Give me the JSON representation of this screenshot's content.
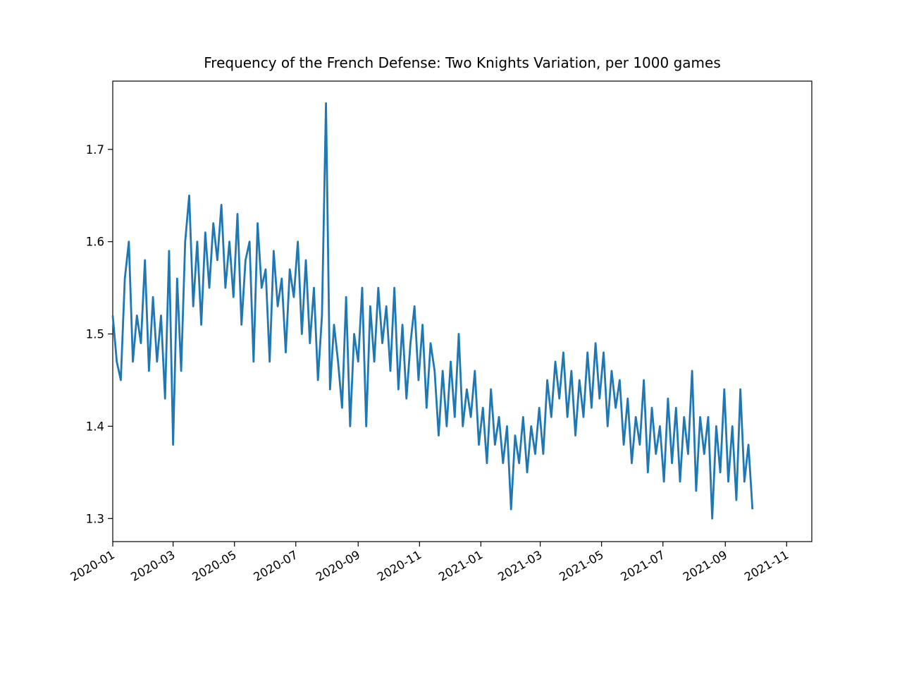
{
  "chart_data": {
    "type": "line",
    "title": "Frequency of the French Defense: Two Knights Variation, per 1000 games",
    "x": [
      0,
      4,
      8,
      12,
      16,
      20,
      24,
      28,
      32,
      36,
      40,
      44,
      48,
      52,
      56,
      60,
      64,
      68,
      72,
      76,
      80,
      84,
      88,
      92,
      96,
      100,
      104,
      108,
      112,
      116,
      120,
      124,
      128,
      132,
      136,
      140,
      144,
      148,
      152,
      156,
      160,
      164,
      168,
      172,
      176,
      180,
      184,
      188,
      192,
      196,
      200,
      204,
      208,
      212,
      216,
      220,
      224,
      228,
      232,
      236,
      240,
      244,
      248,
      252,
      256,
      260,
      264,
      268,
      272,
      276,
      280,
      284,
      288,
      292,
      296,
      300,
      304,
      308,
      312,
      316,
      320,
      324,
      328,
      332,
      336,
      340,
      344,
      348,
      352,
      356,
      360,
      364,
      368,
      372,
      376,
      380,
      384,
      388,
      392,
      396,
      400,
      404,
      408,
      412,
      416,
      420,
      424,
      428,
      432,
      436,
      440,
      444,
      448,
      452,
      456,
      460,
      464,
      468,
      472,
      476,
      480,
      484,
      488,
      492,
      496,
      500,
      504,
      508,
      512,
      516,
      520,
      524,
      528,
      532,
      536,
      540,
      544,
      548,
      552,
      556,
      560,
      564,
      568,
      572,
      576,
      580,
      584,
      588,
      592,
      596,
      600,
      604,
      608,
      612,
      616,
      620,
      624,
      628,
      632,
      636
    ],
    "series": [
      {
        "color": "#1f77b4",
        "values": [
          1.52,
          1.47,
          1.45,
          1.56,
          1.6,
          1.47,
          1.52,
          1.49,
          1.58,
          1.46,
          1.54,
          1.47,
          1.52,
          1.43,
          1.59,
          1.38,
          1.56,
          1.46,
          1.6,
          1.65,
          1.53,
          1.6,
          1.51,
          1.61,
          1.55,
          1.62,
          1.58,
          1.64,
          1.55,
          1.6,
          1.54,
          1.63,
          1.51,
          1.58,
          1.6,
          1.47,
          1.62,
          1.55,
          1.57,
          1.47,
          1.59,
          1.53,
          1.56,
          1.48,
          1.57,
          1.54,
          1.6,
          1.5,
          1.58,
          1.49,
          1.55,
          1.45,
          1.52,
          1.75,
          1.44,
          1.51,
          1.47,
          1.42,
          1.54,
          1.4,
          1.5,
          1.47,
          1.55,
          1.4,
          1.53,
          1.47,
          1.55,
          1.49,
          1.53,
          1.46,
          1.55,
          1.44,
          1.51,
          1.43,
          1.49,
          1.53,
          1.45,
          1.51,
          1.42,
          1.49,
          1.46,
          1.39,
          1.46,
          1.4,
          1.47,
          1.41,
          1.5,
          1.4,
          1.44,
          1.41,
          1.46,
          1.38,
          1.42,
          1.36,
          1.44,
          1.38,
          1.41,
          1.36,
          1.4,
          1.31,
          1.39,
          1.36,
          1.41,
          1.35,
          1.4,
          1.37,
          1.42,
          1.37,
          1.45,
          1.41,
          1.47,
          1.43,
          1.48,
          1.41,
          1.46,
          1.39,
          1.45,
          1.41,
          1.48,
          1.42,
          1.49,
          1.43,
          1.48,
          1.4,
          1.46,
          1.42,
          1.45,
          1.38,
          1.43,
          1.36,
          1.41,
          1.38,
          1.45,
          1.35,
          1.42,
          1.37,
          1.4,
          1.34,
          1.43,
          1.36,
          1.42,
          1.34,
          1.41,
          1.37,
          1.46,
          1.33,
          1.41,
          1.37,
          1.41,
          1.3,
          1.4,
          1.35,
          1.44,
          1.34,
          1.4,
          1.32,
          1.44,
          1.34,
          1.38,
          1.31
        ]
      }
    ],
    "xlim": [
      0,
      695
    ],
    "xticks": [
      {
        "value": 0,
        "label": "2020-01"
      },
      {
        "value": 60,
        "label": "2020-03"
      },
      {
        "value": 121,
        "label": "2020-05"
      },
      {
        "value": 182,
        "label": "2020-07"
      },
      {
        "value": 244,
        "label": "2020-09"
      },
      {
        "value": 305,
        "label": "2020-11"
      },
      {
        "value": 366,
        "label": "2021-01"
      },
      {
        "value": 425,
        "label": "2021-03"
      },
      {
        "value": 486,
        "label": "2021-05"
      },
      {
        "value": 547,
        "label": "2021-07"
      },
      {
        "value": 609,
        "label": "2021-09"
      },
      {
        "value": 670,
        "label": "2021-11"
      }
    ],
    "ylim": [
      1.275,
      1.774
    ],
    "yticks": [
      1.3,
      1.4,
      1.5,
      1.6,
      1.7
    ]
  }
}
